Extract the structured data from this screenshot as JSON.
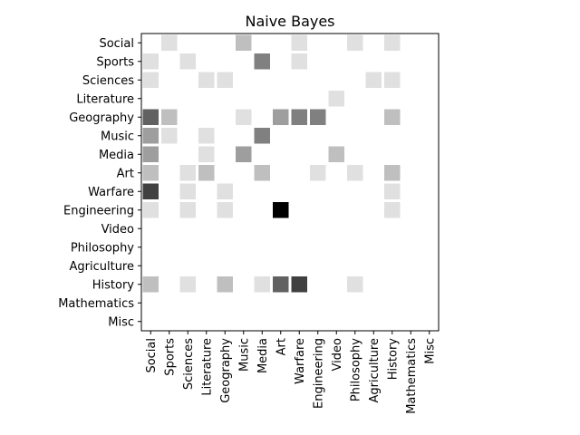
{
  "chart_data": {
    "type": "heatmap",
    "title": "Naive Bayes",
    "xlabel": "",
    "ylabel": "",
    "x_categories": [
      "Social",
      "Sports",
      "Sciences",
      "Literature",
      "Geography",
      "Music",
      "Media",
      "Art",
      "Warfare",
      "Engineering",
      "Video",
      "Philosophy",
      "Agriculture",
      "History",
      "Mathematics",
      "Misc"
    ],
    "y_categories": [
      "Social",
      "Sports",
      "Sciences",
      "Literature",
      "Geography",
      "Music",
      "Media",
      "Art",
      "Warfare",
      "Engineering",
      "Video",
      "Philosophy",
      "Agriculture",
      "History",
      "Mathematics",
      "Misc"
    ],
    "colormap": "grayscale (0 = white, 1 = black)",
    "grid": false,
    "values": [
      [
        0,
        0.12,
        0,
        0,
        0,
        0.25,
        0,
        0,
        0.12,
        0,
        0,
        0.12,
        0,
        0.12,
        0,
        0
      ],
      [
        0.12,
        0,
        0.12,
        0,
        0,
        0,
        0.5,
        0,
        0.12,
        0,
        0,
        0,
        0,
        0,
        0,
        0
      ],
      [
        0.12,
        0,
        0,
        0.12,
        0.12,
        0,
        0,
        0,
        0,
        0,
        0,
        0,
        0.12,
        0.12,
        0,
        0
      ],
      [
        0,
        0,
        0,
        0,
        0,
        0,
        0,
        0,
        0,
        0,
        0.12,
        0,
        0,
        0,
        0,
        0
      ],
      [
        0.62,
        0.25,
        0,
        0,
        0,
        0.12,
        0,
        0.38,
        0.5,
        0.5,
        0,
        0,
        0,
        0.25,
        0,
        0
      ],
      [
        0.38,
        0.12,
        0,
        0.12,
        0,
        0,
        0.5,
        0,
        0,
        0,
        0,
        0,
        0,
        0,
        0,
        0
      ],
      [
        0.38,
        0,
        0,
        0.12,
        0,
        0.38,
        0,
        0,
        0,
        0,
        0.25,
        0,
        0,
        0,
        0,
        0
      ],
      [
        0.25,
        0,
        0.12,
        0.25,
        0,
        0,
        0.25,
        0,
        0,
        0.12,
        0,
        0.12,
        0,
        0.25,
        0,
        0
      ],
      [
        0.75,
        0,
        0.12,
        0,
        0.12,
        0,
        0,
        0,
        0,
        0,
        0,
        0,
        0,
        0.12,
        0,
        0
      ],
      [
        0.12,
        0,
        0.12,
        0,
        0.12,
        0,
        0,
        1.0,
        0,
        0,
        0,
        0,
        0,
        0.12,
        0,
        0
      ],
      [
        0,
        0,
        0,
        0,
        0,
        0,
        0,
        0,
        0,
        0,
        0,
        0,
        0,
        0,
        0,
        0
      ],
      [
        0,
        0,
        0,
        0,
        0,
        0,
        0,
        0,
        0,
        0,
        0,
        0,
        0,
        0,
        0,
        0
      ],
      [
        0,
        0,
        0,
        0,
        0,
        0,
        0,
        0,
        0,
        0,
        0,
        0,
        0,
        0,
        0,
        0
      ],
      [
        0.25,
        0,
        0.12,
        0,
        0.25,
        0,
        0.12,
        0.62,
        0.75,
        0,
        0,
        0.12,
        0,
        0,
        0,
        0
      ],
      [
        0,
        0,
        0,
        0,
        0,
        0,
        0,
        0,
        0,
        0,
        0,
        0,
        0,
        0,
        0,
        0
      ],
      [
        0,
        0,
        0,
        0,
        0,
        0,
        0,
        0,
        0,
        0,
        0,
        0,
        0,
        0,
        0,
        0
      ]
    ]
  }
}
